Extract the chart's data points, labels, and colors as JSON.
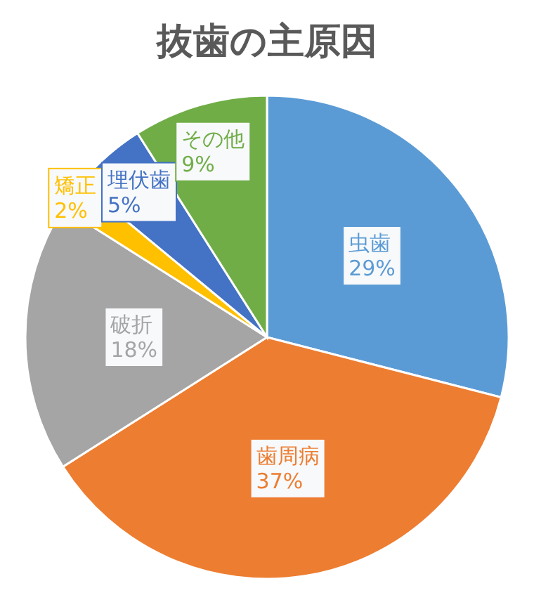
{
  "chart_data": {
    "type": "pie",
    "title": "抜歯の主原因",
    "categories": [
      "虫歯",
      "歯周病",
      "破折",
      "矯正",
      "埋伏歯",
      "その他"
    ],
    "values": [
      29,
      37,
      18,
      2,
      5,
      9
    ],
    "colors": [
      "#5b9bd5",
      "#ed7d31",
      "#a5a5a5",
      "#ffc000",
      "#4472c4",
      "#70ad47"
    ],
    "value_labels": [
      "29%",
      "37%",
      "18%",
      "2%",
      "5%",
      "9%"
    ]
  }
}
